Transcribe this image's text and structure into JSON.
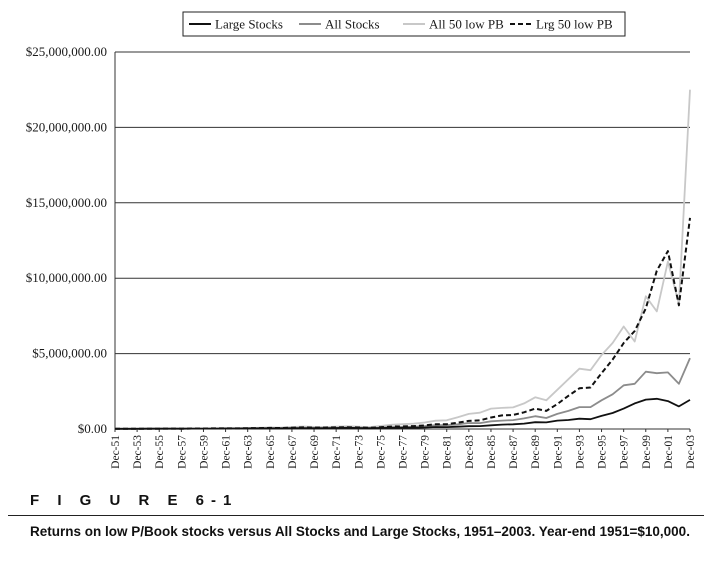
{
  "figure": {
    "label": "F I G U R E  6-1",
    "caption": "Returns on low P/Book stocks versus All Stocks and Large Stocks, 1951–2003. Year-end 1951=$10,000."
  },
  "chart_data": {
    "type": "line",
    "title": "",
    "xlabel": "",
    "ylabel": "",
    "ylim": [
      0,
      25000000
    ],
    "yticks": [
      0,
      5000000,
      10000000,
      15000000,
      20000000,
      25000000
    ],
    "ytick_labels": [
      "$0.00",
      "$5,000,000.00",
      "$10,000,000.00",
      "$15,000,000.00",
      "$20,000,000.00",
      "$25,000,000.00"
    ],
    "x": [
      1951,
      1952,
      1953,
      1954,
      1955,
      1956,
      1957,
      1958,
      1959,
      1960,
      1961,
      1962,
      1963,
      1964,
      1965,
      1966,
      1967,
      1968,
      1969,
      1970,
      1971,
      1972,
      1973,
      1974,
      1975,
      1976,
      1977,
      1978,
      1979,
      1980,
      1981,
      1982,
      1983,
      1984,
      1985,
      1986,
      1987,
      1988,
      1989,
      1990,
      1991,
      1992,
      1993,
      1994,
      1995,
      1996,
      1997,
      1998,
      1999,
      2000,
      2001,
      2002,
      2003
    ],
    "xtick_labels": [
      "Dec-51",
      "Dec-53",
      "Dec-55",
      "Dec-57",
      "Dec-59",
      "Dec-61",
      "Dec-63",
      "Dec-65",
      "Dec-67",
      "Dec-69",
      "Dec-71",
      "Dec-73",
      "Dec-75",
      "Dec-77",
      "Dec-79",
      "Dec-81",
      "Dec-83",
      "Dec-85",
      "Dec-87",
      "Dec-89",
      "Dec-91",
      "Dec-93",
      "Dec-95",
      "Dec-97",
      "Dec-99",
      "Dec-01",
      "Dec-03"
    ],
    "grid": "horizontal",
    "legend": "top-center",
    "series": [
      {
        "name": "Large Stocks",
        "color": "#111111",
        "dash": "solid",
        "values": [
          10000,
          12000,
          12500,
          17000,
          20000,
          21500,
          20000,
          26000,
          29000,
          29500,
          35000,
          33000,
          39000,
          44000,
          48000,
          45000,
          54000,
          60000,
          56000,
          58000,
          66000,
          77000,
          67000,
          50000,
          68000,
          82000,
          78000,
          83000,
          100000,
          130000,
          125000,
          155000,
          185000,
          195000,
          245000,
          290000,
          310000,
          355000,
          450000,
          440000,
          560000,
          600000,
          680000,
          650000,
          870000,
          1060000,
          1350000,
          1700000,
          1950000,
          2000000,
          1850000,
          1500000,
          1930000
        ]
      },
      {
        "name": "All Stocks",
        "color": "#8c8c8c",
        "dash": "solid",
        "values": [
          10000,
          12000,
          12800,
          18000,
          22000,
          24000,
          22500,
          32000,
          37000,
          38000,
          46000,
          42000,
          52000,
          62000,
          73000,
          68000,
          90000,
          108000,
          92000,
          90000,
          102000,
          113000,
          88000,
          67000,
          95000,
          125000,
          135000,
          150000,
          190000,
          250000,
          250000,
          310000,
          400000,
          390000,
          510000,
          560000,
          590000,
          700000,
          850000,
          730000,
          1000000,
          1200000,
          1450000,
          1450000,
          1900000,
          2300000,
          2900000,
          3000000,
          3800000,
          3700000,
          3750000,
          3000000,
          4700000
        ]
      },
      {
        "name": "All 50 low PB",
        "color": "#c8c8c8",
        "dash": "solid",
        "values": [
          10000,
          12500,
          13000,
          20000,
          25000,
          27000,
          25000,
          37000,
          43000,
          45000,
          57000,
          52000,
          67000,
          82000,
          100000,
          95000,
          130000,
          165000,
          140000,
          135000,
          160000,
          180000,
          150000,
          120000,
          200000,
          280000,
          320000,
          350000,
          430000,
          550000,
          580000,
          780000,
          1000000,
          1080000,
          1350000,
          1400000,
          1430000,
          1700000,
          2100000,
          1900000,
          2600000,
          3300000,
          4000000,
          3900000,
          4900000,
          5700000,
          6800000,
          5800000,
          8800000,
          7800000,
          11100000,
          8300000,
          22500000
        ]
      },
      {
        "name": "Lrg 50 low PB",
        "color": "#111111",
        "dash": "dashed",
        "values": [
          10000,
          12300,
          12800,
          18500,
          22500,
          24500,
          22500,
          31000,
          36000,
          37000,
          45000,
          42000,
          52000,
          62000,
          72000,
          68000,
          88000,
          105000,
          92000,
          90000,
          105000,
          120000,
          100000,
          80000,
          120000,
          160000,
          175000,
          190000,
          240000,
          310000,
          320000,
          420000,
          540000,
          570000,
          760000,
          900000,
          930000,
          1110000,
          1350000,
          1200000,
          1650000,
          2200000,
          2700000,
          2750000,
          3700000,
          4600000,
          5700000,
          6500000,
          8000000,
          10500000,
          11800000,
          8200000,
          14000000
        ]
      }
    ]
  }
}
